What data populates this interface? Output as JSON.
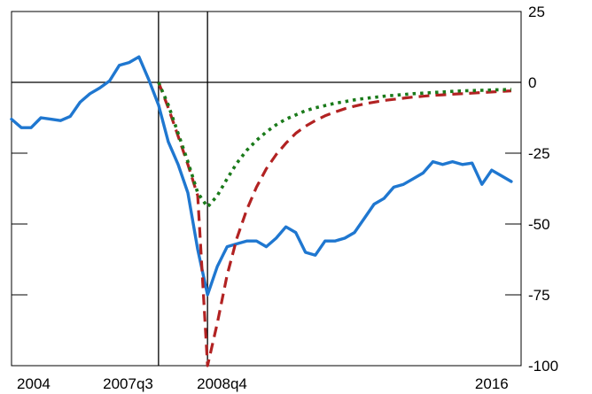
{
  "chart_data": {
    "type": "line",
    "title": "",
    "xlabel": "",
    "ylabel": "",
    "ylim": [
      -100,
      25
    ],
    "xlim": [
      2003.75,
      2016.75
    ],
    "y_ticks": [
      25,
      0,
      -25,
      -50,
      -75,
      -100
    ],
    "y_tick_labels": [
      "25",
      "0",
      "-25",
      "-50",
      "-75",
      "-100"
    ],
    "x_ticks": [
      {
        "value": 2004.0,
        "label": "2004"
      },
      {
        "value": 2007.5,
        "label": "2007q3"
      },
      {
        "value": 2008.75,
        "label": "2008q4"
      },
      {
        "value": 2016.0,
        "label": "2016"
      }
    ],
    "horizontal_rules": [
      0
    ],
    "vertical_rules": [
      2007.5,
      2008.75
    ],
    "grid": false,
    "legend": "none",
    "series": [
      {
        "color": "#1f77d0",
        "style": "solid",
        "x": [
          2003.75,
          2004.0,
          2004.25,
          2004.5,
          2004.75,
          2005.0,
          2005.25,
          2005.5,
          2005.75,
          2006.0,
          2006.25,
          2006.5,
          2006.75,
          2007.0,
          2007.25,
          2007.5,
          2007.75,
          2008.0,
          2008.25,
          2008.5,
          2008.75,
          2009.0,
          2009.25,
          2009.5,
          2009.75,
          2010.0,
          2010.25,
          2010.5,
          2010.75,
          2011.0,
          2011.25,
          2011.5,
          2011.75,
          2012.0,
          2012.25,
          2012.5,
          2012.75,
          2013.0,
          2013.25,
          2013.5,
          2013.75,
          2014.0,
          2014.25,
          2014.5,
          2014.75,
          2015.0,
          2015.25,
          2015.5,
          2015.75,
          2016.0,
          2016.25,
          2016.5
        ],
        "y": [
          -13,
          -16,
          -16,
          -12.5,
          -13,
          -13.5,
          -12,
          -7,
          -4,
          -2,
          0.5,
          6,
          7,
          9,
          1,
          -8,
          -21,
          -29,
          -39,
          -59,
          -75,
          -65,
          -58,
          -57,
          -56,
          -56,
          -58,
          -55,
          -51,
          -53,
          -60,
          -61,
          -56,
          -56,
          -55,
          -53,
          -48,
          -43,
          -41,
          -37,
          -36,
          -34,
          -32,
          -28,
          -29,
          -28,
          -29,
          -28.5,
          -36,
          -31,
          -33,
          -35
        ]
      },
      {
        "color": "#b22222",
        "style": "dashed",
        "x": [
          2007.5,
          2007.75,
          2008.0,
          2008.25,
          2008.5,
          2008.75,
          2009.0,
          2009.25,
          2009.5,
          2009.75,
          2010.0,
          2010.25,
          2010.5,
          2010.75,
          2011.0,
          2011.25,
          2011.5,
          2011.75,
          2012.0,
          2012.25,
          2012.5,
          2012.75,
          2013.0,
          2013.25,
          2013.5,
          2013.75,
          2014.0,
          2014.25,
          2014.5,
          2014.75,
          2015.0,
          2015.25,
          2015.5,
          2015.75,
          2016.0,
          2016.25,
          2016.5
        ],
        "y": [
          0,
          -9,
          -19,
          -29,
          -40,
          -100,
          -85,
          -68,
          -55,
          -45,
          -37,
          -30.5,
          -25.5,
          -21.5,
          -18,
          -15.5,
          -13.5,
          -11.8,
          -10.5,
          -9.3,
          -8.4,
          -7.6,
          -7,
          -6.4,
          -6,
          -5.6,
          -5.2,
          -4.9,
          -4.6,
          -4.4,
          -4.2,
          -4,
          -3.8,
          -3.6,
          -3.4,
          -3.2,
          -3
        ]
      },
      {
        "color": "#1a7a1a",
        "style": "dotted",
        "x": [
          2007.5,
          2007.75,
          2008.0,
          2008.25,
          2008.5,
          2008.75,
          2009.0,
          2009.25,
          2009.5,
          2009.75,
          2010.0,
          2010.25,
          2010.5,
          2010.75,
          2011.0,
          2011.25,
          2011.5,
          2011.75,
          2012.0,
          2012.25,
          2012.5,
          2012.75,
          2013.0,
          2013.25,
          2013.5,
          2013.75,
          2014.0,
          2014.25,
          2014.5,
          2014.75,
          2015.0,
          2015.25,
          2015.5,
          2015.75,
          2016.0,
          2016.25,
          2016.5
        ],
        "y": [
          0,
          -8,
          -18,
          -28,
          -39,
          -44,
          -40,
          -34,
          -28.5,
          -24,
          -20.5,
          -17.5,
          -15,
          -13,
          -11.5,
          -10,
          -9,
          -8.2,
          -7.4,
          -6.8,
          -6.2,
          -5.7,
          -5.3,
          -4.9,
          -4.6,
          -4.3,
          -4,
          -3.8,
          -3.6,
          -3.4,
          -3.2,
          -3,
          -2.9,
          -2.8,
          -2.7,
          -2.6,
          -2.5
        ]
      }
    ]
  }
}
